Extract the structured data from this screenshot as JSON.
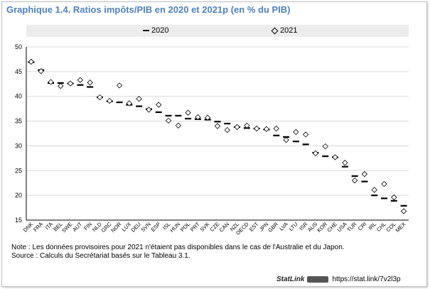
{
  "title": "Graphique 1.4. Ratios impôts/PIB en 2020 et 2021p (en % du PIB)",
  "legend": {
    "series_2020": "2020",
    "series_2021": "2021"
  },
  "chart_data": {
    "type": "scatter",
    "title": "Ratios impôts/PIB en 2020 et 2021p (en % du PIB)",
    "xlabel": "",
    "ylabel": "",
    "ylim": [
      15,
      50
    ],
    "yticks": [
      15,
      20,
      25,
      30,
      35,
      40,
      45,
      50
    ],
    "grid": true,
    "legend_position": "top",
    "categories": [
      "DNK",
      "FRA",
      "ITA",
      "BEL",
      "SWE",
      "AUT",
      "FIN",
      "NLD",
      "GRC",
      "NOR",
      "LUX",
      "DEU",
      "SVN",
      "ESP",
      "ISL",
      "HUN",
      "POL",
      "PRT",
      "SVK",
      "CZE",
      "CAN",
      "NZL",
      "OECD",
      "EST",
      "JPN",
      "GBR",
      "LVA",
      "LTU",
      "ISR",
      "AUS",
      "KOR",
      "CHE",
      "USA",
      "TUR",
      "CRI",
      "IRL",
      "CHL",
      "COL",
      "MEX"
    ],
    "series": [
      {
        "name": "2020",
        "marker": "dash",
        "values": [
          46.9,
          45.3,
          42.7,
          42.7,
          42.6,
          42.3,
          41.9,
          39.8,
          39.0,
          38.8,
          38.3,
          38.0,
          37.4,
          36.8,
          36.1,
          36.1,
          35.5,
          35.4,
          35.3,
          34.9,
          34.5,
          33.8,
          33.6,
          33.5,
          33.3,
          32.1,
          31.8,
          30.9,
          30.3,
          28.6,
          27.9,
          27.7,
          25.8,
          23.9,
          22.8,
          20.0,
          19.4,
          18.9,
          17.9
        ]
      },
      {
        "name": "2021",
        "marker": "diamond",
        "values": [
          47.0,
          45.1,
          42.9,
          42.1,
          42.6,
          43.3,
          42.8,
          39.8,
          39.1,
          42.2,
          38.6,
          39.5,
          37.3,
          38.3,
          35.1,
          34.1,
          36.7,
          35.8,
          35.7,
          34.0,
          33.2,
          33.8,
          34.1,
          33.5,
          33.4,
          33.5,
          31.2,
          32.8,
          32.3,
          28.5,
          29.9,
          27.7,
          26.6,
          23.0,
          24.3,
          21.1,
          22.3,
          19.6,
          16.8
        ]
      }
    ]
  },
  "notes": {
    "note": "Note : Les données provisoires pour 2021 n'étaient pas disponibles dans le cas de l'Australie et du Japon.",
    "source": "Source : Calculs du Secrétariat basés sur le Tableau 3.1."
  },
  "footer": {
    "statlink_label": "StatLink",
    "url": "https://stat.link/7v2l3p"
  }
}
